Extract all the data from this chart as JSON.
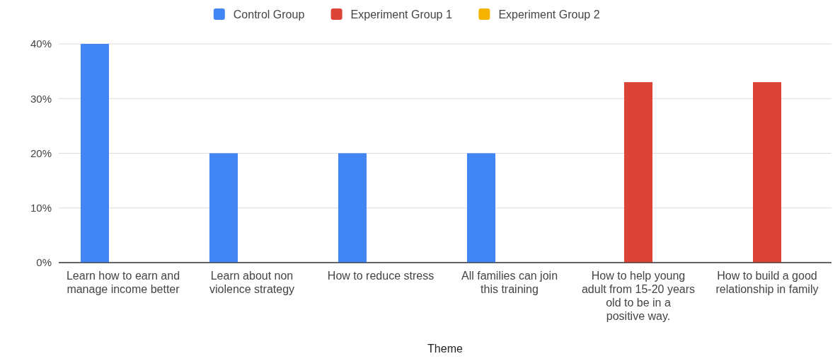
{
  "chart_data": {
    "type": "bar",
    "xlabel": "Theme",
    "categories": [
      "Learn how to earn and manage income better",
      "Learn about non violence strategy",
      "How to reduce stress",
      "All families can join this training",
      "How to help young adult from 15-20 years old to be in a positive way.",
      "How to build a good relationship in family"
    ],
    "series": [
      {
        "name": "Control Group",
        "color": "#4285f4",
        "values": [
          40,
          20,
          20,
          20,
          0,
          0
        ]
      },
      {
        "name": "Experiment Group 1",
        "color": "#db4437",
        "values": [
          0,
          0,
          0,
          0,
          33,
          33
        ]
      },
      {
        "name": "Experiment Group 2",
        "color": "#f4b400",
        "values": [
          0,
          0,
          0,
          0,
          0,
          0
        ]
      }
    ],
    "ylim": [
      0,
      40
    ],
    "yticks": [
      {
        "value": 0,
        "label": "0%"
      },
      {
        "value": 10,
        "label": "10%"
      },
      {
        "value": 20,
        "label": "20%"
      },
      {
        "value": 30,
        "label": "30%"
      },
      {
        "value": 40,
        "label": "40%"
      }
    ],
    "grid": "y",
    "legend": "top"
  }
}
